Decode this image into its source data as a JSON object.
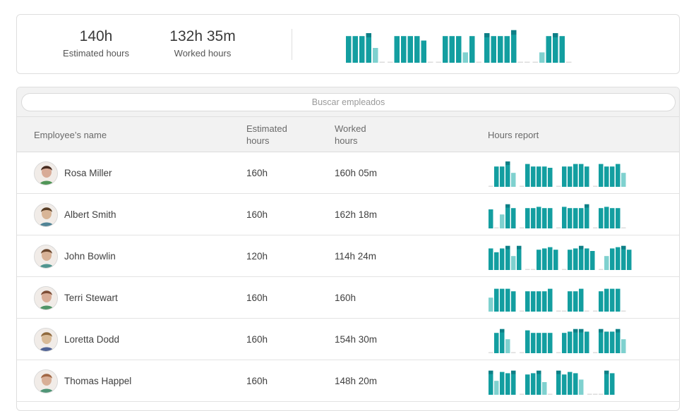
{
  "summary": {
    "estimated": {
      "value": "140h",
      "label": "Estimated hours"
    },
    "worked": {
      "value": "132h 35m",
      "label": "Worked hours"
    },
    "chart": [
      [
        0.9,
        0.9,
        0.9,
        1.0,
        0.5,
        0
      ],
      [
        0,
        0.9,
        0.9,
        0.9,
        0.9,
        0.75,
        0
      ],
      [
        0,
        0.9,
        0.9,
        0.9,
        0.35,
        0.9,
        0
      ],
      [
        1.0,
        0.9,
        0.9,
        0.9,
        1.1,
        0,
        0
      ],
      [
        0,
        0.35,
        0.9,
        1.0,
        0.9,
        0
      ]
    ]
  },
  "table": {
    "search_placeholder": "Buscar empleados",
    "headers": {
      "name": "Employee’s name",
      "estimated": "Estimated hours",
      "worked": "Worked hours",
      "report": "Hours report"
    },
    "rows": [
      {
        "name": "Rosa Miller",
        "estimated": "160h",
        "worked": "160h 05m",
        "avatar": "avatar-rosa",
        "report": [
          [
            0,
            0.8,
            0.8,
            1.0,
            0.55
          ],
          [
            0,
            0.9,
            0.8,
            0.8,
            0.8,
            0.75
          ],
          [
            0,
            0.8,
            0.8,
            0.9,
            0.9,
            0.8
          ],
          [
            0,
            0.9,
            0.8,
            0.8,
            0.9,
            0.55
          ]
        ]
      },
      {
        "name": "Albert Smith",
        "estimated": "160h",
        "worked": "162h 18m",
        "avatar": "avatar-albert",
        "report": [
          [
            0.75,
            0,
            0.55,
            0.95,
            0.8
          ],
          [
            0,
            0.8,
            0.8,
            0.85,
            0.8,
            0.8
          ],
          [
            0,
            0.85,
            0.8,
            0.8,
            0.8,
            0.95
          ],
          [
            0,
            0.8,
            0.85,
            0.8,
            0.8,
            0
          ]
        ]
      },
      {
        "name": "John Bowlin",
        "estimated": "120h",
        "worked": "114h 24m",
        "avatar": "avatar-john",
        "report": [
          [
            0.85,
            0.7,
            0.85,
            0.95,
            0.55,
            0.95
          ],
          [
            0,
            0,
            0.8,
            0.85,
            0.9,
            0.8
          ],
          [
            0,
            0.8,
            0.85,
            0.95,
            0.85,
            0.75
          ],
          [
            0,
            0.55,
            0.85,
            0.9,
            0.95,
            0.8
          ]
        ]
      },
      {
        "name": "Terri Stewart",
        "estimated": "160h",
        "worked": "160h",
        "avatar": "avatar-terri",
        "report": [
          [
            0.55,
            0.9,
            0.9,
            0.9,
            0.8
          ],
          [
            0,
            0.8,
            0.8,
            0.8,
            0.8,
            0.9
          ],
          [
            0,
            0,
            0.8,
            0.8,
            0.9,
            0
          ],
          [
            0,
            0.8,
            0.9,
            0.9,
            0.9,
            0
          ]
        ]
      },
      {
        "name": "Loretta Dodd",
        "estimated": "160h",
        "worked": "154h 30m",
        "avatar": "avatar-loretta",
        "report": [
          [
            0,
            0.8,
            0.95,
            0.55,
            0
          ],
          [
            0,
            0.9,
            0.8,
            0.8,
            0.8,
            0.8
          ],
          [
            0,
            0.8,
            0.85,
            0.95,
            0.95,
            0.85
          ],
          [
            0,
            0.95,
            0.85,
            0.85,
            0.95,
            0.55
          ]
        ]
      },
      {
        "name": "Thomas Happel",
        "estimated": "160h",
        "worked": "148h 20m",
        "avatar": "avatar-thomas",
        "report": [
          [
            0.95,
            0.55,
            0.9,
            0.85,
            0.95
          ],
          [
            0,
            0.8,
            0.85,
            0.95,
            0.5,
            0
          ],
          [
            0.95,
            0.8,
            0.9,
            0.85,
            0.6
          ],
          [
            0,
            0,
            0,
            0.95,
            0.85
          ]
        ]
      }
    ]
  },
  "colors": {
    "bar": "#139ea0",
    "bar_top": "#0d7f86",
    "bar_light": "#7fd1cf",
    "empty": "#dcdcdc"
  }
}
